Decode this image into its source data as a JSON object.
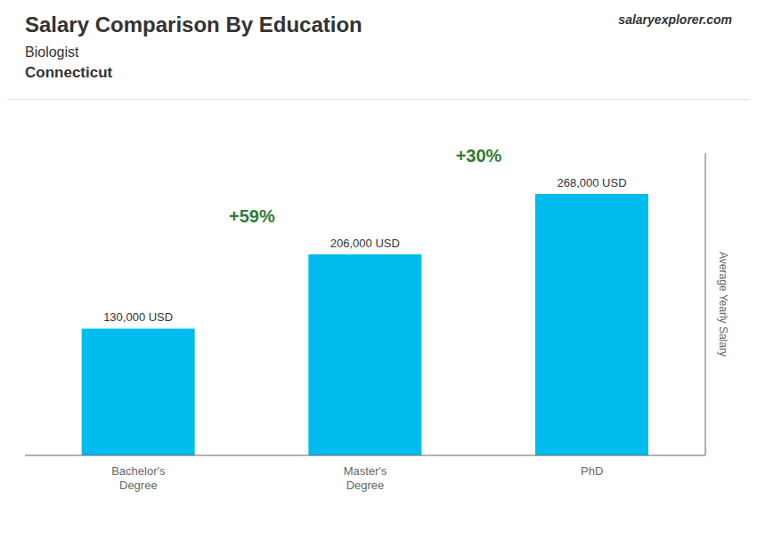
{
  "chart_data": {
    "type": "bar",
    "title": "Salary Comparison By Education",
    "subtitle": [
      "Biologist",
      "Connecticut"
    ],
    "ylabel": "Average Yearly Salary",
    "categories": [
      "Bachelor's\nDegree",
      "Master's\nDegree",
      "PhD"
    ],
    "values": [
      130000,
      206000,
      268000
    ],
    "value_labels": [
      "130,000 USD",
      "206,000 USD",
      "268,000 USD"
    ],
    "data_labels": true,
    "color": "#00bbee",
    "ylim": [
      0,
      310000
    ],
    "yticks": [],
    "grid": false,
    "tick_labels": "x",
    "annotations": [
      "+59%",
      "+30%",
      "salaryexplorer.com"
    ]
  }
}
